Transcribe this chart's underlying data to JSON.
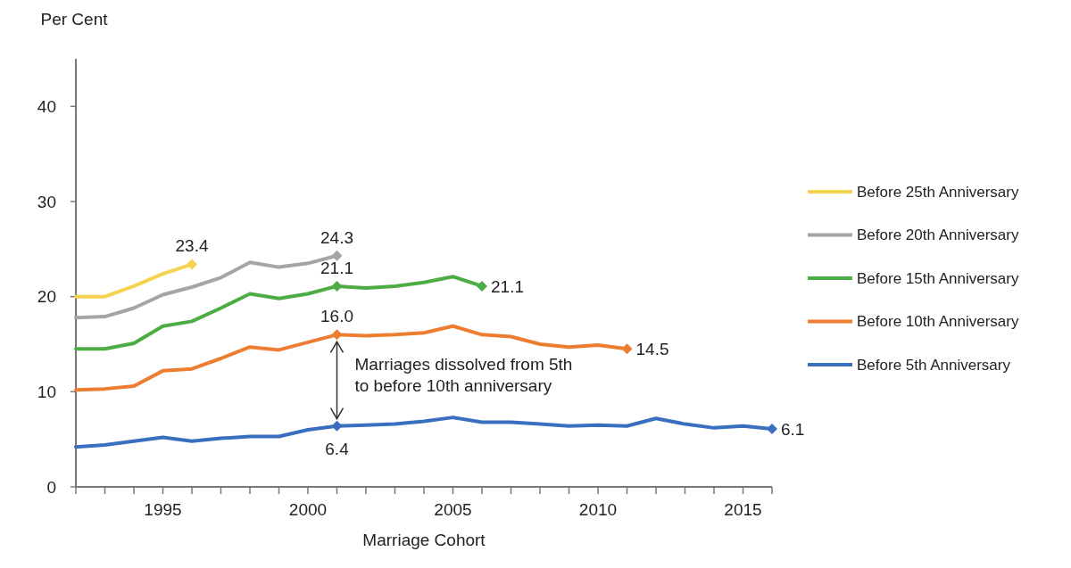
{
  "chart_data": {
    "type": "line",
    "xlabel": "Marriage Cohort",
    "ylabel": "Per Cent",
    "x": [
      1992,
      1993,
      1994,
      1995,
      1996,
      1997,
      1998,
      1999,
      2000,
      2001,
      2002,
      2003,
      2004,
      2005,
      2006,
      2007,
      2008,
      2009,
      2010,
      2011,
      2012,
      2013,
      2014,
      2015,
      2016
    ],
    "xlim": [
      1992,
      2016
    ],
    "xticks": [
      {
        "value": 1992,
        "label": null
      },
      {
        "value": 1993,
        "label": null
      },
      {
        "value": 1994,
        "label": null
      },
      1995,
      {
        "value": 1996,
        "label": null
      },
      {
        "value": 1997,
        "label": null
      },
      {
        "value": 1998,
        "label": null
      },
      {
        "value": 1999,
        "label": null
      },
      2000,
      {
        "value": 2001,
        "label": null
      },
      {
        "value": 2002,
        "label": null
      },
      {
        "value": 2003,
        "label": null
      },
      {
        "value": 2004,
        "label": null
      },
      2005,
      {
        "value": 2006,
        "label": null
      },
      {
        "value": 2007,
        "label": null
      },
      {
        "value": 2008,
        "label": null
      },
      {
        "value": 2009,
        "label": null
      },
      2010,
      {
        "value": 2011,
        "label": null
      },
      {
        "value": 2012,
        "label": null
      },
      {
        "value": 2013,
        "label": null
      },
      {
        "value": 2014,
        "label": null
      },
      2015,
      {
        "value": 2016,
        "label": null
      }
    ],
    "ylim": [
      0,
      45
    ],
    "yticks": [
      0,
      10,
      20,
      30,
      40
    ],
    "grid": false,
    "legend": "right",
    "line_style": "solid",
    "series": [
      {
        "name": "Before 25th Anniversary",
        "color": "#f5d24f",
        "values": [
          20.0,
          20.0,
          21.1,
          22.4,
          23.4,
          null,
          null,
          null,
          null,
          null,
          null,
          null,
          null,
          null,
          null,
          null,
          null,
          null,
          null,
          null,
          null,
          null,
          null,
          null,
          null
        ],
        "value_labels": [
          null,
          null,
          null,
          null,
          "23.4",
          null,
          null,
          null,
          null,
          null,
          null,
          null,
          null,
          null,
          null,
          null,
          null,
          null,
          null,
          null,
          null,
          null,
          null,
          null,
          null
        ]
      },
      {
        "name": "Before 20th Anniversary",
        "color": "#a5a5a5",
        "values": [
          17.8,
          17.9,
          18.8,
          20.2,
          21.0,
          22.0,
          23.6,
          23.1,
          23.5,
          24.3,
          null,
          null,
          null,
          null,
          null,
          null,
          null,
          null,
          null,
          null,
          null,
          null,
          null,
          null,
          null
        ],
        "value_labels": [
          null,
          null,
          null,
          null,
          null,
          null,
          null,
          null,
          null,
          "24.3",
          null,
          null,
          null,
          null,
          null,
          null,
          null,
          null,
          null,
          null,
          null,
          null,
          null,
          null,
          null
        ]
      },
      {
        "name": "Before 15th Anniversary",
        "color": "#4eac44",
        "values": [
          14.5,
          14.5,
          15.1,
          16.9,
          17.4,
          18.8,
          20.3,
          19.8,
          20.3,
          21.1,
          20.9,
          21.1,
          21.5,
          22.1,
          21.1,
          null,
          null,
          null,
          null,
          null,
          null,
          null,
          null,
          null,
          null
        ],
        "value_labels": [
          null,
          null,
          null,
          null,
          null,
          null,
          null,
          null,
          null,
          "21.1",
          null,
          null,
          null,
          null,
          "21.1",
          null,
          null,
          null,
          null,
          null,
          null,
          null,
          null,
          null,
          null
        ]
      },
      {
        "name": "Before 10th Anniversary",
        "color": "#ed7d31",
        "values": [
          10.2,
          10.3,
          10.6,
          12.2,
          12.4,
          13.5,
          14.7,
          14.4,
          15.2,
          16.0,
          15.9,
          16.0,
          16.2,
          16.9,
          16.0,
          15.8,
          15.0,
          14.7,
          14.9,
          14.5,
          null,
          null,
          null,
          null,
          null
        ],
        "value_labels": [
          null,
          null,
          null,
          null,
          null,
          null,
          null,
          null,
          null,
          "16.0",
          null,
          null,
          null,
          null,
          null,
          null,
          null,
          null,
          null,
          "14.5",
          null,
          null,
          null,
          null,
          null
        ]
      },
      {
        "name": "Before 5th Anniversary",
        "color": "#3a6fc0",
        "values": [
          4.2,
          4.4,
          4.8,
          5.2,
          4.8,
          5.1,
          5.3,
          5.3,
          6.0,
          6.4,
          6.5,
          6.6,
          6.9,
          7.3,
          6.8,
          6.8,
          6.6,
          6.4,
          6.5,
          6.4,
          7.2,
          6.6,
          6.2,
          6.4,
          6.1
        ],
        "value_labels": [
          null,
          null,
          null,
          null,
          null,
          null,
          null,
          null,
          null,
          "6.4",
          null,
          null,
          null,
          null,
          null,
          null,
          null,
          null,
          null,
          null,
          null,
          null,
          null,
          null,
          "6.1"
        ]
      }
    ],
    "annotations": [
      {
        "text": "Marriages dissolved from 5th to before 10th anniversary",
        "x": 2001,
        "y": 16.0
      }
    ]
  }
}
